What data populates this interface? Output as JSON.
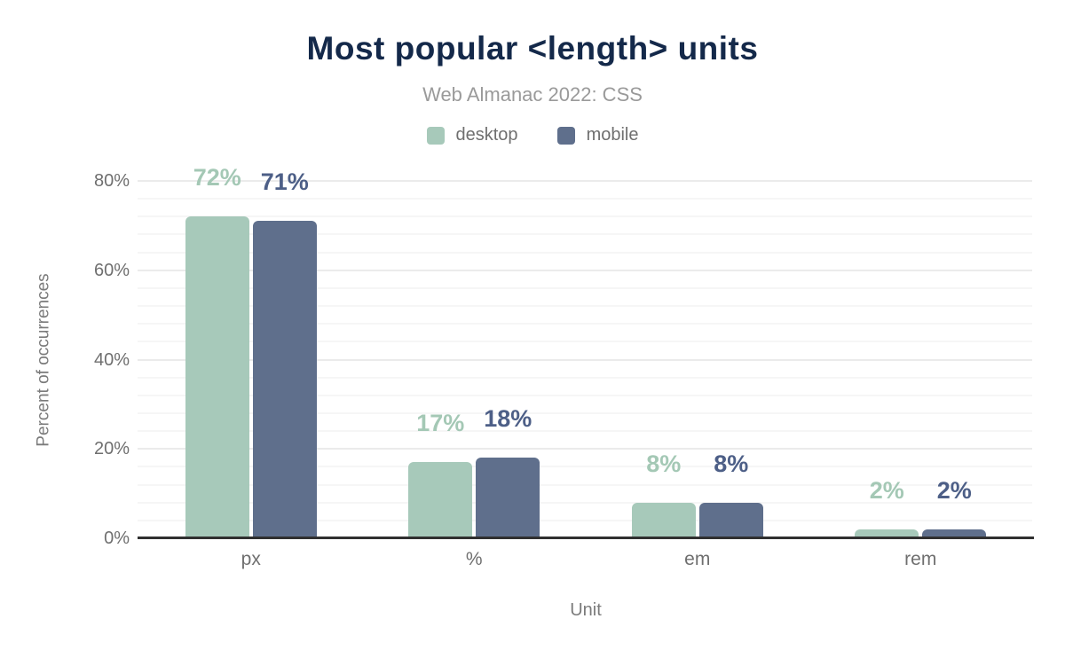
{
  "colors": {
    "title": "#14294a",
    "subtitle": "#9a9a9a",
    "axis_text": "#6f6f6f",
    "axis_title": "#7b7b7b",
    "axis_line": "#303030",
    "grid_major": "#ebebeb",
    "grid_minor": "#f6f6f6",
    "background": "#ffffff",
    "desktop_bar": "#a7c9ba",
    "mobile_bar": "#5f6f8c",
    "desktop_label": "#a4c8b5",
    "mobile_label": "#4d5f87"
  },
  "chart_data": {
    "type": "bar",
    "title": "Most popular <length> units",
    "subtitle": "Web Almanac 2022: CSS",
    "categories": [
      "px",
      "%",
      "em",
      "rem"
    ],
    "series": [
      {
        "name": "desktop",
        "color": "#a7c9ba",
        "label_color": "#a4c8b5",
        "values": [
          72,
          17,
          8,
          2
        ],
        "data_labels": [
          "72%",
          "17%",
          "8%",
          "2%"
        ]
      },
      {
        "name": "mobile",
        "color": "#5f6f8c",
        "label_color": "#4d5f87",
        "values": [
          71,
          18,
          8,
          2
        ],
        "data_labels": [
          "71%",
          "18%",
          "8%",
          "2%"
        ]
      }
    ],
    "xlabel": "Unit",
    "ylabel": "Percent of occurrences",
    "ylim": [
      0,
      80
    ],
    "yticks": [
      0,
      20,
      40,
      60,
      80
    ],
    "ytick_suffix": "%",
    "grid": {
      "major_step": 20,
      "minor_step": 4
    },
    "legend_position": "top",
    "legend": [
      "desktop",
      "mobile"
    ]
  }
}
